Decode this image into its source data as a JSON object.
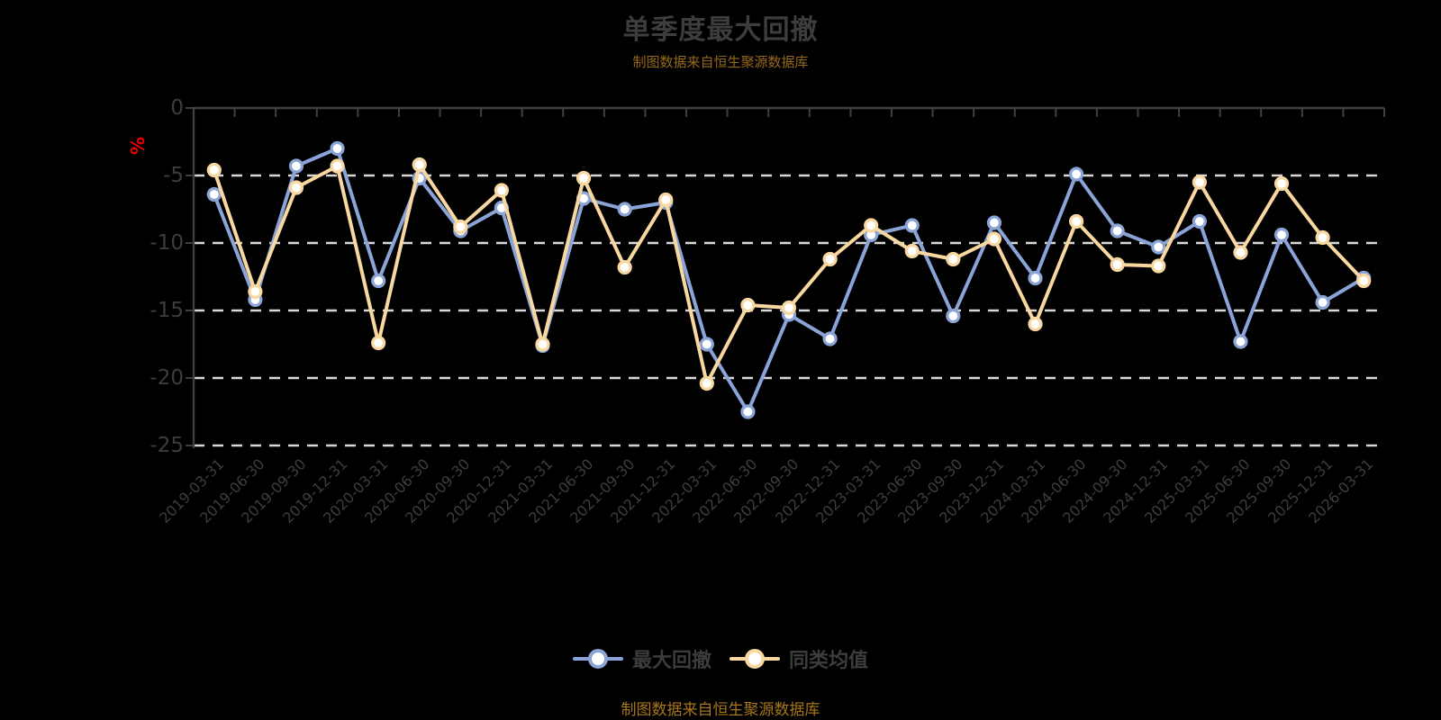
{
  "title": "单季度最大回撤",
  "subtitle": "制图数据来自恒生聚源数据库",
  "footer_note": "制图数据来自恒生聚源数据库",
  "y_axis": {
    "unit": "%",
    "unit_color": "#EE0000",
    "ticks": [
      0,
      -5,
      -10,
      -15,
      -20,
      -25
    ]
  },
  "colors": {
    "background": "#000000",
    "text": "#3D3D3D",
    "grid": "#D8D8D8",
    "axis": "#3F3F3F",
    "note_orange": "#A8761A",
    "series_blue": "#8AA4D8",
    "series_yellow": "#F8D8A0"
  },
  "chart_data": {
    "type": "line",
    "title": "单季度最大回撤",
    "ylabel": "%",
    "ylim": [
      -25,
      0
    ],
    "grid": "horizontal dashed",
    "legend_position": "bottom",
    "categories": [
      "2019-03-31",
      "2019-06-30",
      "2019-09-30",
      "2019-12-31",
      "2020-03-31",
      "2020-06-30",
      "2020-09-30",
      "2020-12-31",
      "2021-03-31",
      "2021-06-30",
      "2021-09-30",
      "2021-12-31",
      "2022-03-31",
      "2022-06-30",
      "2022-09-30",
      "2022-12-31",
      "2023-03-31",
      "2023-06-30",
      "2023-09-30",
      "2023-12-31",
      "2024-03-31",
      "2024-06-30",
      "2024-09-30",
      "2024-12-31",
      "2025-03-31",
      "2025-06-30",
      "2025-09-30",
      "2025-12-31",
      "2026-03-31"
    ],
    "series": [
      {
        "name": "最大回撤",
        "color": "#8AA4D8",
        "values": [
          -6.4,
          -14.2,
          -4.3,
          -3.0,
          -12.8,
          -5.2,
          -9.1,
          -7.4,
          -17.6,
          -6.7,
          -7.5,
          -7.0,
          -17.5,
          -22.5,
          -15.3,
          -17.1,
          -9.4,
          -8.7,
          -15.4,
          -8.5,
          -12.6,
          -4.9,
          -9.1,
          -10.3,
          -8.4,
          -17.3,
          -9.4,
          -14.4,
          -12.6
        ]
      },
      {
        "name": "同类均值",
        "color": "#F8D8A0",
        "values": [
          -4.6,
          -13.6,
          -5.9,
          -4.3,
          -17.4,
          -4.2,
          -8.8,
          -6.1,
          -17.5,
          -5.2,
          -11.8,
          -6.8,
          -20.4,
          -14.6,
          -14.8,
          -11.2,
          -8.7,
          -10.6,
          -11.2,
          -9.7,
          -16.0,
          -8.4,
          -11.6,
          -11.7,
          -5.5,
          -10.7,
          -5.6,
          -9.6,
          -12.8
        ]
      }
    ]
  }
}
